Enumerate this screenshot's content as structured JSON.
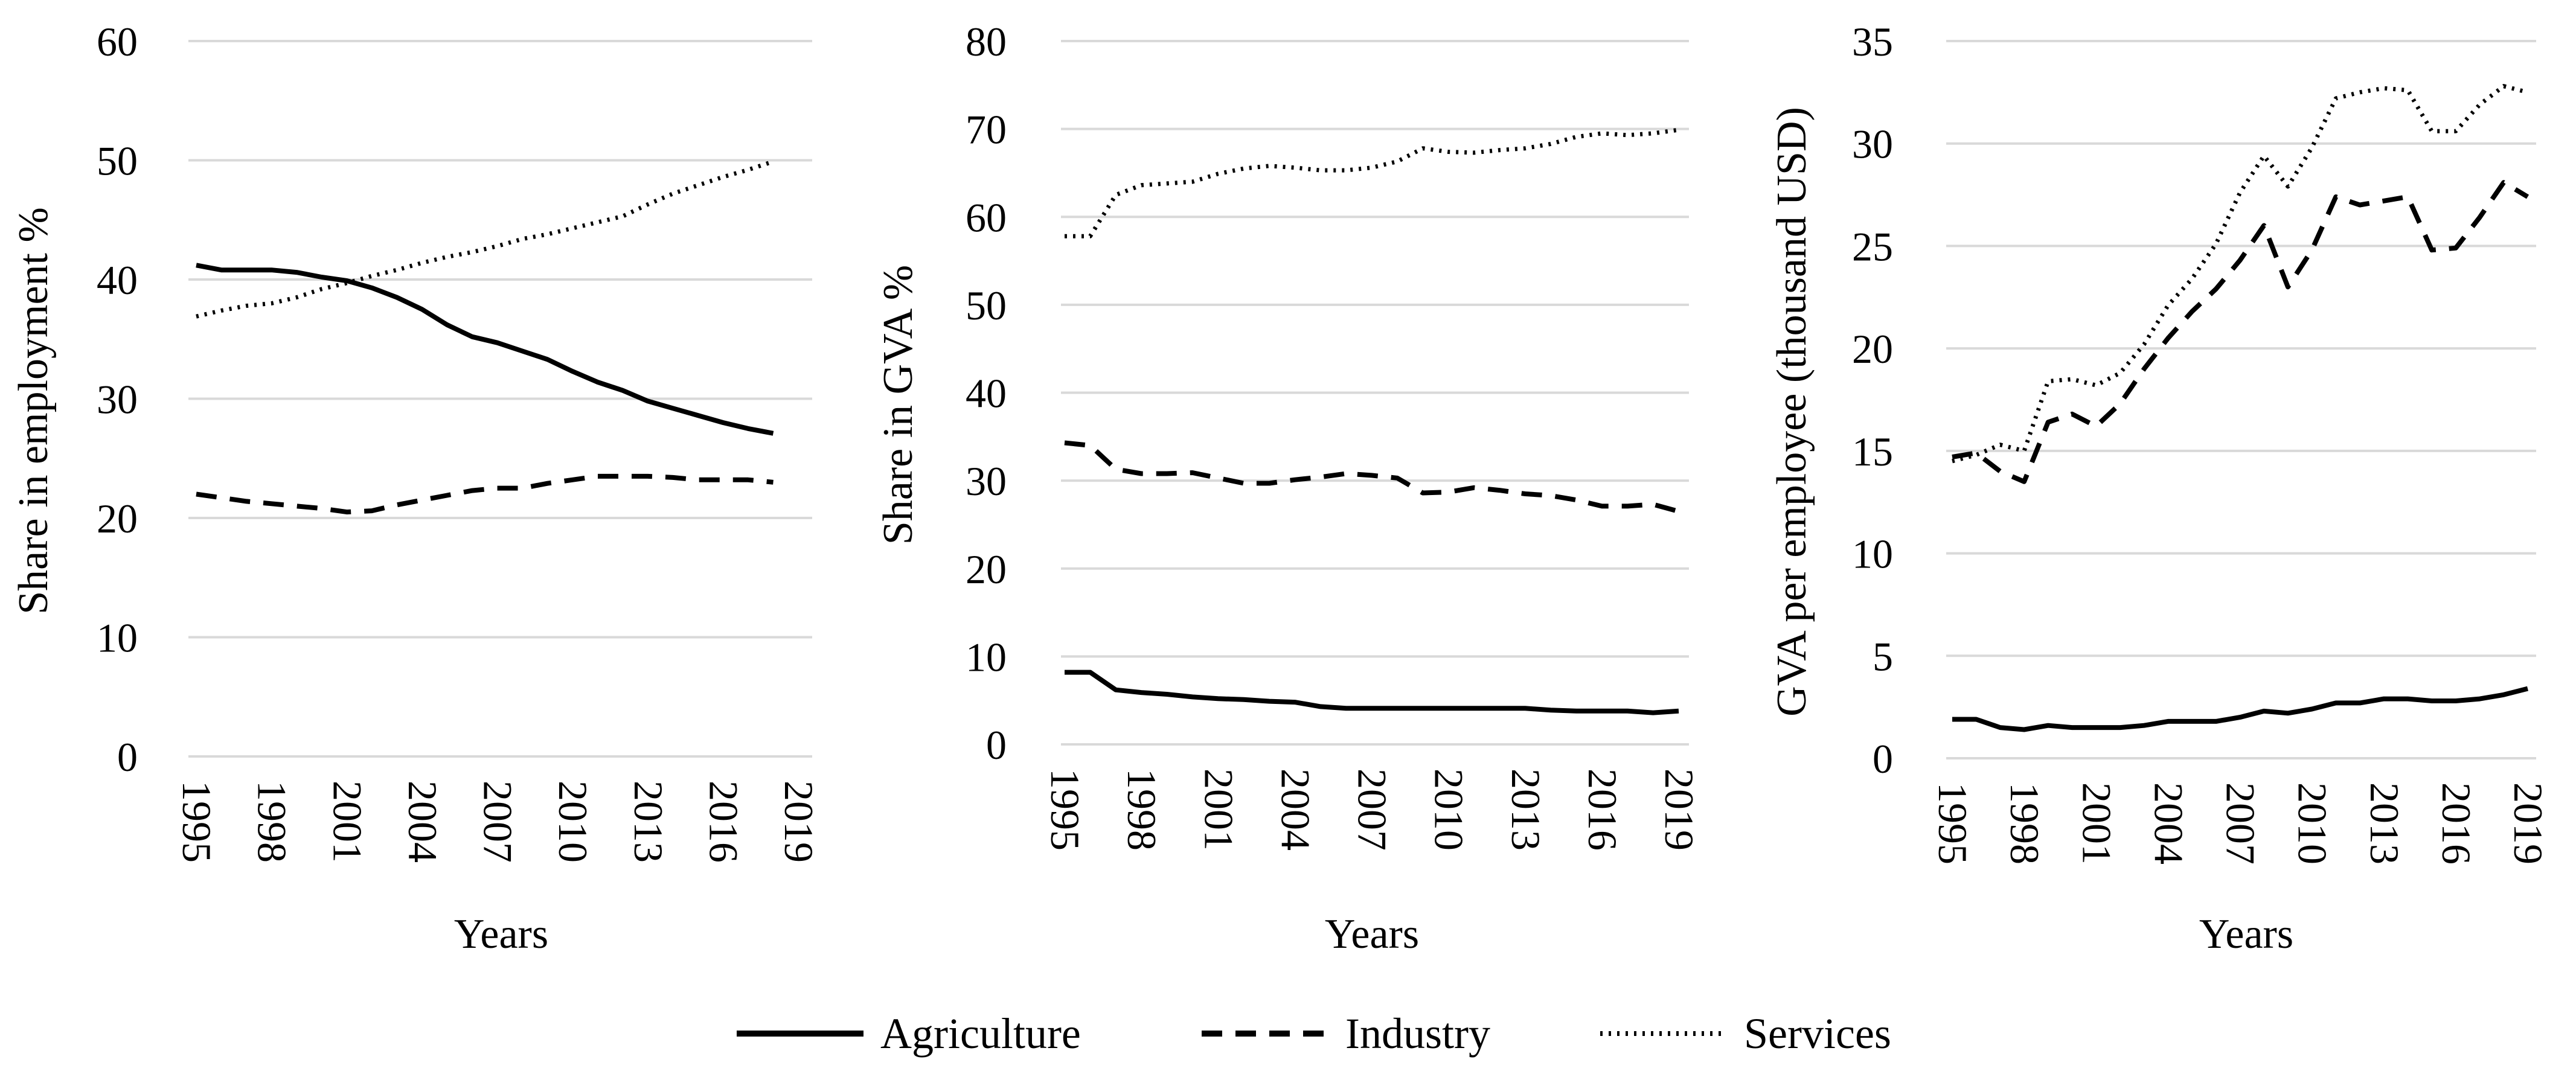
{
  "chart_data": [
    {
      "type": "line",
      "title": "",
      "xlabel": "Years",
      "ylabel": "Share in employment %",
      "ylim": [
        0,
        60
      ],
      "yticks": [
        0,
        10,
        20,
        30,
        40,
        50,
        60
      ],
      "grid": true,
      "x": [
        1995,
        1996,
        1997,
        1998,
        1999,
        2000,
        2001,
        2002,
        2003,
        2004,
        2005,
        2006,
        2007,
        2008,
        2009,
        2010,
        2011,
        2012,
        2013,
        2014,
        2015,
        2016,
        2017,
        2018
      ],
      "xticks": [
        "1995",
        "1998",
        "2001",
        "2004",
        "2007",
        "2010",
        "2013",
        "2016",
        "2019"
      ],
      "series": [
        {
          "name": "Agriculture",
          "values": [
            41.2,
            40.8,
            40.8,
            40.8,
            40.6,
            40.2,
            39.9,
            39.3,
            38.5,
            37.5,
            36.2,
            35.2,
            34.7,
            34.0,
            33.3,
            32.3,
            31.4,
            30.7,
            29.8,
            29.2,
            28.6,
            28.0,
            27.5,
            27.1
          ],
          "dash": "solid"
        },
        {
          "name": "Industry",
          "values": [
            22.0,
            21.7,
            21.4,
            21.2,
            21.0,
            20.8,
            20.5,
            20.6,
            21.1,
            21.5,
            21.9,
            22.3,
            22.5,
            22.5,
            22.9,
            23.2,
            23.5,
            23.5,
            23.5,
            23.4,
            23.2,
            23.2,
            23.2,
            23.0
          ],
          "dash": "dash"
        },
        {
          "name": "Services",
          "values": [
            36.9,
            37.4,
            37.8,
            38.0,
            38.5,
            39.2,
            39.7,
            40.3,
            40.8,
            41.4,
            41.9,
            42.3,
            42.8,
            43.4,
            43.8,
            44.3,
            44.8,
            45.3,
            46.3,
            47.2,
            47.9,
            48.6,
            49.2,
            49.9
          ],
          "dash": "dot"
        }
      ]
    },
    {
      "type": "line",
      "title": "",
      "xlabel": "Years",
      "ylabel": "Share in GVA  %",
      "ylim": [
        0,
        80
      ],
      "yticks": [
        0,
        10,
        20,
        30,
        40,
        50,
        60,
        70,
        80
      ],
      "grid": true,
      "x": [
        1995,
        1996,
        1997,
        1998,
        1999,
        2000,
        2001,
        2002,
        2003,
        2004,
        2005,
        2006,
        2007,
        2008,
        2009,
        2010,
        2011,
        2012,
        2013,
        2014,
        2015,
        2016,
        2017,
        2018,
        2019
      ],
      "xticks": [
        "1995",
        "1998",
        "2001",
        "2004",
        "2007",
        "2010",
        "2013",
        "2016",
        "2019"
      ],
      "series": [
        {
          "name": "Agriculture",
          "values": [
            8.2,
            8.2,
            6.2,
            5.9,
            5.7,
            5.4,
            5.2,
            5.1,
            4.9,
            4.8,
            4.3,
            4.1,
            4.1,
            4.1,
            4.1,
            4.1,
            4.1,
            4.1,
            4.1,
            3.9,
            3.8,
            3.8,
            3.8,
            3.6,
            3.8
          ],
          "dash": "solid"
        },
        {
          "name": "Industry",
          "values": [
            34.3,
            34.0,
            31.3,
            30.8,
            30.8,
            30.9,
            30.3,
            29.7,
            29.7,
            30.1,
            30.4,
            30.8,
            30.6,
            30.3,
            28.6,
            28.7,
            29.2,
            28.9,
            28.5,
            28.3,
            27.8,
            27.1,
            27.1,
            27.3,
            26.5
          ],
          "dash": "dash"
        },
        {
          "name": "Services",
          "values": [
            57.8,
            57.8,
            62.5,
            63.6,
            63.8,
            64.0,
            64.9,
            65.5,
            65.8,
            65.6,
            65.3,
            65.3,
            65.6,
            66.3,
            67.8,
            67.4,
            67.3,
            67.6,
            67.8,
            68.3,
            69.1,
            69.5,
            69.3,
            69.5,
            69.9
          ],
          "dash": "dot"
        }
      ]
    },
    {
      "type": "line",
      "title": "",
      "xlabel": "Years",
      "ylabel": "GVA per employee (thousand USD)",
      "ylim": [
        0,
        35
      ],
      "yticks": [
        0,
        5,
        10,
        15,
        20,
        25,
        30,
        35
      ],
      "grid": true,
      "x": [
        1995,
        1996,
        1997,
        1998,
        1999,
        2000,
        2001,
        2002,
        2003,
        2004,
        2005,
        2006,
        2007,
        2008,
        2009,
        2010,
        2011,
        2012,
        2013,
        2014,
        2015,
        2016,
        2017,
        2018,
        2019
      ],
      "xticks": [
        "1995",
        "1998",
        "2001",
        "2004",
        "2007",
        "2010",
        "2013",
        "2016",
        "2019"
      ],
      "series": [
        {
          "name": "Agriculture",
          "values": [
            1.9,
            1.9,
            1.5,
            1.4,
            1.6,
            1.5,
            1.5,
            1.5,
            1.6,
            1.8,
            1.8,
            1.8,
            2.0,
            2.3,
            2.2,
            2.4,
            2.7,
            2.7,
            2.9,
            2.9,
            2.8,
            2.8,
            2.9,
            3.1,
            3.4
          ],
          "dash": "solid"
        },
        {
          "name": "Industry",
          "values": [
            14.7,
            14.9,
            14.0,
            13.5,
            16.4,
            16.8,
            16.2,
            17.3,
            19.0,
            20.5,
            21.8,
            22.9,
            24.3,
            26.0,
            23.0,
            24.8,
            27.4,
            27.0,
            27.2,
            27.4,
            24.8,
            24.9,
            26.4,
            28.1,
            27.4
          ],
          "dash": "dash"
        },
        {
          "name": "Services",
          "values": [
            14.5,
            14.8,
            15.3,
            15.0,
            18.4,
            18.5,
            18.2,
            18.8,
            20.2,
            22.1,
            23.4,
            25.1,
            27.6,
            29.4,
            27.9,
            29.8,
            32.2,
            32.5,
            32.7,
            32.6,
            30.6,
            30.6,
            31.9,
            32.8,
            32.5
          ],
          "dash": "dot"
        }
      ]
    }
  ],
  "legend": {
    "position": "bottom-center",
    "items": [
      {
        "name": "Agriculture",
        "dash": "solid"
      },
      {
        "name": "Industry",
        "dash": "dash"
      },
      {
        "name": "Services",
        "dash": "dot"
      }
    ]
  },
  "colors": {
    "line": "#000000",
    "grid": "#d9d9d9"
  }
}
